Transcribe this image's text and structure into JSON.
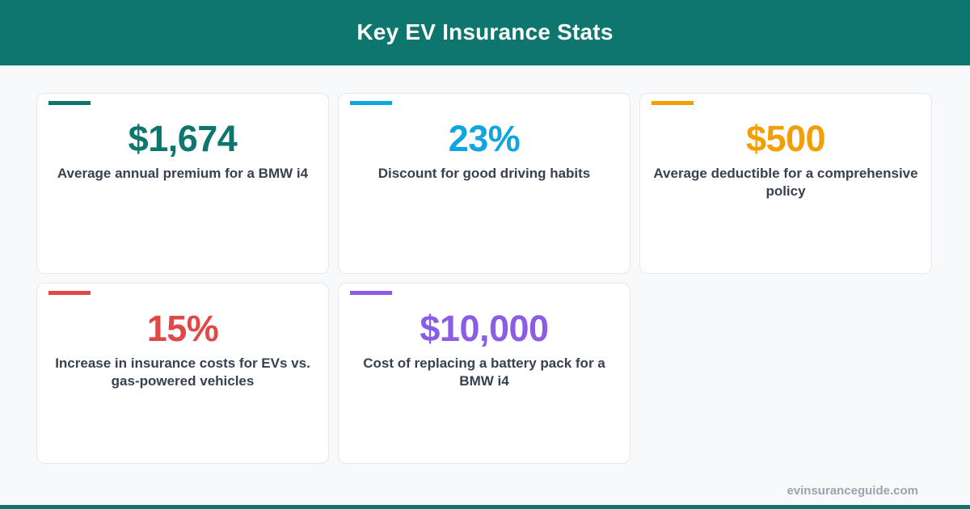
{
  "header": {
    "title": "Key EV Insurance Stats"
  },
  "cards": [
    {
      "value": "$1,674",
      "description": "Average annual premium for a BMW i4",
      "color": "#0f766e"
    },
    {
      "value": "23%",
      "description": "Discount for good driving habits",
      "color": "#0ea5e0"
    },
    {
      "value": "$500",
      "description": "Average deductible for a comprehensive policy",
      "color": "#f29f05"
    },
    {
      "value": "15%",
      "description": "Increase in insurance costs for EVs vs. gas-powered vehicles",
      "color": "#e04848"
    },
    {
      "value": "$10,000",
      "description": "Cost of replacing a battery pack for a BMW i4",
      "color": "#8b5ce6"
    }
  ],
  "footer": {
    "url": "evinsuranceguide.com"
  },
  "colors": {
    "header_bg": "#0f766e",
    "page_bg": "#f7f9fb",
    "card_text": "#374151"
  }
}
